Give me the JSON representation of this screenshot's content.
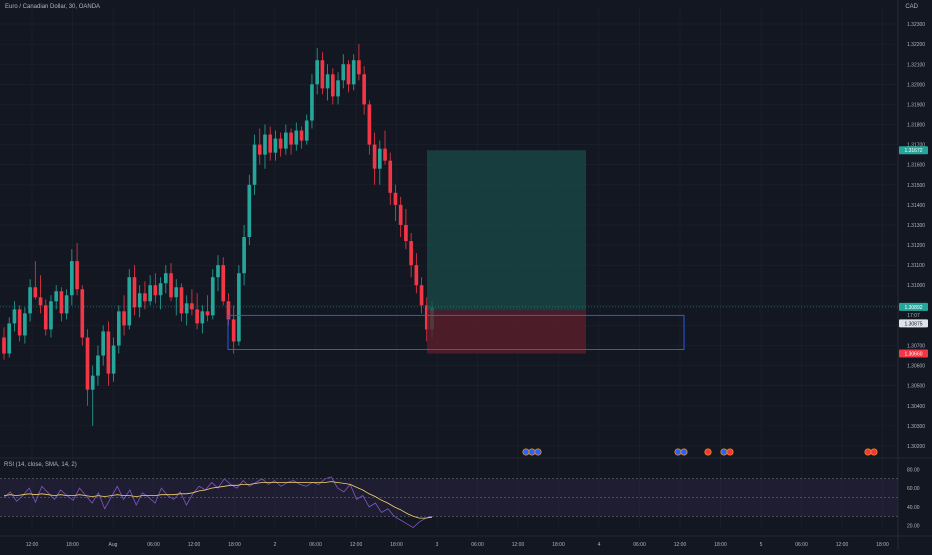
{
  "header": {
    "symbol_title": "Euro / Canadian Dollar, 30, OANDA",
    "currency": "CAD"
  },
  "rsi": {
    "label": "RSI (14, close, SMA, 14, 2)",
    "axis_ticks": [
      "80.00",
      "60.00",
      "40.00",
      "20.00"
    ],
    "upper_band": 70,
    "lower_band": 30,
    "mid_band": 50,
    "values": [
      50,
      56,
      46,
      52,
      60,
      45,
      62,
      55,
      48,
      58,
      52,
      47,
      60,
      52,
      44,
      55,
      38,
      50,
      62,
      48,
      58,
      42,
      55,
      50,
      44,
      60,
      52,
      48,
      56,
      42,
      54,
      62,
      58,
      66,
      60,
      70,
      64,
      60,
      68,
      62,
      66,
      70,
      64,
      68,
      62,
      66,
      68,
      64,
      62,
      66,
      64,
      70,
      72,
      60,
      56,
      64,
      48,
      52,
      40,
      44,
      34,
      38,
      30,
      26,
      22,
      18,
      24,
      28,
      30
    ],
    "sma_values": [
      52,
      53,
      52,
      53,
      54,
      53,
      54,
      53,
      52,
      53,
      52,
      52,
      53,
      52,
      51,
      52,
      51,
      52,
      53,
      52,
      52,
      51,
      52,
      52,
      52,
      53,
      53,
      53,
      54,
      54,
      55,
      57,
      58,
      60,
      61,
      62,
      63,
      63,
      64,
      64,
      65,
      66,
      66,
      66,
      66,
      66,
      66,
      66,
      66,
      66,
      66,
      66,
      67,
      66,
      65,
      64,
      61,
      58,
      54,
      51,
      47,
      44,
      40,
      37,
      33,
      30,
      28,
      28,
      29
    ]
  },
  "chart_data": {
    "type": "candlestick",
    "title": "Euro / Canadian Dollar, 30, OANDA",
    "y_ticks": [
      "1.32300",
      "1.32200",
      "1.32100",
      "1.32000",
      "1.31900",
      "1.31800",
      "1.31700",
      "1.31600",
      "1.31500",
      "1.31400",
      "1.31300",
      "1.31200",
      "1.31100",
      "1.31000",
      "1.30900",
      "1.30800",
      "1.30700",
      "1.30600",
      "1.30500",
      "1.30400",
      "1.30300",
      "1.30200"
    ],
    "x_ticks": [
      "12:00",
      "18:00",
      "Aug",
      "06:00",
      "12:00",
      "18:00",
      "2",
      "06:00",
      "12:00",
      "18:00",
      "3",
      "06:00",
      "12:00",
      "18:00",
      "4",
      "06:00",
      "12:00",
      "18:00",
      "5",
      "06:00",
      "12:00",
      "18:00"
    ],
    "ylim": [
      1.3015,
      1.3238
    ],
    "price_labels": {
      "take_profit": "1.31672",
      "current": "1.30892",
      "countdown": "17:07",
      "entry": "1.30875",
      "stop_loss": "1.30660"
    },
    "levels": {
      "take_profit": 1.31672,
      "current": 1.30892,
      "entry": 1.30875,
      "stop_loss": 1.3066,
      "zone_top": 1.3085,
      "zone_bottom": 1.3068
    },
    "candles": [
      [
        1.3074,
        1.3079,
        1.3063,
        1.3066
      ],
      [
        1.3066,
        1.3084,
        1.3064,
        1.3081
      ],
      [
        1.3081,
        1.3092,
        1.3077,
        1.3088
      ],
      [
        1.3088,
        1.309,
        1.3072,
        1.3075
      ],
      [
        1.3075,
        1.3089,
        1.3071,
        1.3086
      ],
      [
        1.3086,
        1.3103,
        1.3082,
        1.3099
      ],
      [
        1.3099,
        1.3112,
        1.3093,
        1.3094
      ],
      [
        1.3094,
        1.3105,
        1.3086,
        1.309
      ],
      [
        1.309,
        1.3093,
        1.3075,
        1.3078
      ],
      [
        1.3078,
        1.3095,
        1.3074,
        1.3092
      ],
      [
        1.3092,
        1.31,
        1.3088,
        1.3097
      ],
      [
        1.3097,
        1.3099,
        1.3082,
        1.3086
      ],
      [
        1.3086,
        1.3098,
        1.3083,
        1.3095
      ],
      [
        1.3095,
        1.3118,
        1.309,
        1.3112
      ],
      [
        1.3112,
        1.3121,
        1.3095,
        1.3098
      ],
      [
        1.3098,
        1.31,
        1.307,
        1.3074
      ],
      [
        1.3074,
        1.3078,
        1.304,
        1.3048
      ],
      [
        1.3048,
        1.306,
        1.303,
        1.3055
      ],
      [
        1.3055,
        1.307,
        1.305,
        1.3065
      ],
      [
        1.3065,
        1.308,
        1.306,
        1.3077
      ],
      [
        1.3077,
        1.3082,
        1.305,
        1.3056
      ],
      [
        1.3056,
        1.3074,
        1.3052,
        1.307
      ],
      [
        1.307,
        1.309,
        1.3066,
        1.3087
      ],
      [
        1.3087,
        1.3095,
        1.3075,
        1.308
      ],
      [
        1.308,
        1.3108,
        1.3078,
        1.3104
      ],
      [
        1.3104,
        1.311,
        1.3085,
        1.3089
      ],
      [
        1.3089,
        1.31,
        1.3084,
        1.3096
      ],
      [
        1.3096,
        1.3102,
        1.3088,
        1.3092
      ],
      [
        1.3092,
        1.3105,
        1.309,
        1.31
      ],
      [
        1.31,
        1.3106,
        1.3091,
        1.3095
      ],
      [
        1.3095,
        1.3104,
        1.3088,
        1.3101
      ],
      [
        1.3101,
        1.311,
        1.3096,
        1.3106
      ],
      [
        1.3106,
        1.3111,
        1.3092,
        1.3094
      ],
      [
        1.3094,
        1.3103,
        1.3085,
        1.3099
      ],
      [
        1.3099,
        1.3101,
        1.3082,
        1.3086
      ],
      [
        1.3086,
        1.3095,
        1.308,
        1.3091
      ],
      [
        1.3091,
        1.3098,
        1.3085,
        1.3088
      ],
      [
        1.3088,
        1.3096,
        1.3078,
        1.3081
      ],
      [
        1.3081,
        1.309,
        1.3076,
        1.3087
      ],
      [
        1.3087,
        1.3095,
        1.3082,
        1.3085
      ],
      [
        1.3085,
        1.3108,
        1.3083,
        1.3104
      ],
      [
        1.3104,
        1.3115,
        1.3097,
        1.311
      ],
      [
        1.311,
        1.3114,
        1.309,
        1.3092
      ],
      [
        1.3092,
        1.3096,
        1.308,
        1.3083
      ],
      [
        1.3083,
        1.309,
        1.3066,
        1.3072
      ],
      [
        1.3072,
        1.311,
        1.307,
        1.3106
      ],
      [
        1.3106,
        1.313,
        1.31,
        1.3124
      ],
      [
        1.3124,
        1.3155,
        1.312,
        1.315
      ],
      [
        1.315,
        1.3175,
        1.3145,
        1.317
      ],
      [
        1.317,
        1.3178,
        1.316,
        1.3165
      ],
      [
        1.3165,
        1.318,
        1.3158,
        1.3175
      ],
      [
        1.3175,
        1.3179,
        1.3162,
        1.3166
      ],
      [
        1.3166,
        1.3177,
        1.3162,
        1.3173
      ],
      [
        1.3173,
        1.3176,
        1.3164,
        1.3168
      ],
      [
        1.3168,
        1.318,
        1.3165,
        1.3176
      ],
      [
        1.3176,
        1.3178,
        1.3165,
        1.317
      ],
      [
        1.317,
        1.3181,
        1.3167,
        1.3177
      ],
      [
        1.3177,
        1.3179,
        1.3168,
        1.3172
      ],
      [
        1.3172,
        1.3185,
        1.317,
        1.3182
      ],
      [
        1.3182,
        1.3205,
        1.3178,
        1.32
      ],
      [
        1.32,
        1.3218,
        1.3195,
        1.3212
      ],
      [
        1.3212,
        1.3216,
        1.3195,
        1.3198
      ],
      [
        1.3198,
        1.321,
        1.3192,
        1.3205
      ],
      [
        1.3205,
        1.3208,
        1.319,
        1.3194
      ],
      [
        1.3194,
        1.3206,
        1.319,
        1.3202
      ],
      [
        1.3202,
        1.3215,
        1.3198,
        1.321
      ],
      [
        1.321,
        1.3212,
        1.3196,
        1.32
      ],
      [
        1.32,
        1.3215,
        1.3197,
        1.3212
      ],
      [
        1.3212,
        1.322,
        1.3202,
        1.3205
      ],
      [
        1.3205,
        1.3209,
        1.3185,
        1.319
      ],
      [
        1.319,
        1.3192,
        1.3165,
        1.317
      ],
      [
        1.317,
        1.3176,
        1.315,
        1.3158
      ],
      [
        1.3158,
        1.3172,
        1.315,
        1.3168
      ],
      [
        1.3168,
        1.3177,
        1.316,
        1.3162
      ],
      [
        1.3162,
        1.3166,
        1.314,
        1.3146
      ],
      [
        1.3146,
        1.315,
        1.3132,
        1.314
      ],
      [
        1.314,
        1.3144,
        1.3124,
        1.313
      ],
      [
        1.313,
        1.3138,
        1.3118,
        1.3122
      ],
      [
        1.3122,
        1.3126,
        1.3104,
        1.311
      ],
      [
        1.311,
        1.3116,
        1.3096,
        1.31
      ],
      [
        1.31,
        1.3104,
        1.3086,
        1.309
      ],
      [
        1.309,
        1.3094,
        1.3072,
        1.3078
      ],
      [
        1.3078,
        1.3092,
        1.3074,
        1.3089
      ]
    ]
  },
  "trade_markers": {
    "groups": [
      {
        "count": 3,
        "colors": [
          "#2962ff",
          "#2962ff",
          "#2962ff"
        ]
      },
      {
        "count": 2,
        "colors": [
          "#2962ff",
          "#2962ff"
        ]
      },
      {
        "count": 1,
        "colors": [
          "#f23645"
        ]
      },
      {
        "count": 2,
        "colors": [
          "#2962ff",
          "#f23645"
        ]
      },
      {
        "count": 2,
        "colors": [
          "#f23645",
          "#f23645"
        ]
      }
    ]
  },
  "colors": {
    "bull": "#26a69a",
    "bear": "#f23645",
    "background": "#131722",
    "grid": "#1e222d",
    "rsi_line": "#7e57c2",
    "rsi_sma": "#f7d36b",
    "zone_border": "#2962ff",
    "tp_fill": "#1b4b4a",
    "sl_fill": "#5b1f2b"
  }
}
